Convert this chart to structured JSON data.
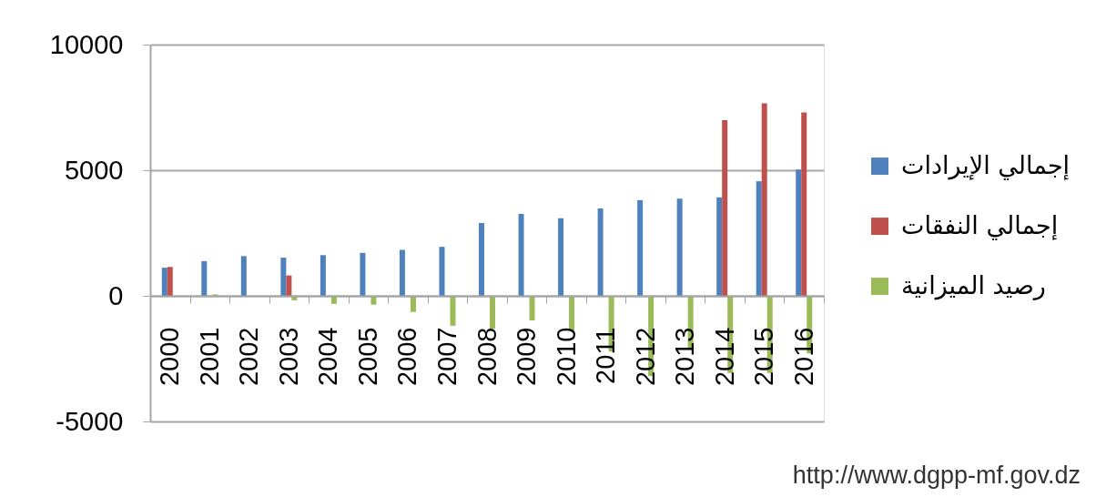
{
  "chart_data": {
    "type": "bar",
    "categories": [
      "2000",
      "2001",
      "2002",
      "2003",
      "2004",
      "2005",
      "2006",
      "2007",
      "2008",
      "2009",
      "2010",
      "2011",
      "2012",
      "2013",
      "2014",
      "2015",
      "2016"
    ],
    "series": [
      {
        "name": "إجمالي الإيرادات",
        "color": "#4f81bd",
        "values": [
          1120,
          1380,
          1580,
          1520,
          1620,
          1710,
          1830,
          1950,
          2900,
          3260,
          3090,
          3480,
          3810,
          3870,
          3920,
          4560,
          5030
        ]
      },
      {
        "name": "إجمالي النفقات",
        "color": "#c0504d",
        "values": [
          1150,
          null,
          null,
          810,
          null,
          null,
          null,
          null,
          null,
          null,
          null,
          null,
          null,
          null,
          6990,
          7660,
          7300
        ]
      },
      {
        "name": "رصيد الميزانية",
        "color": "#9bbb59",
        "values": [
          null,
          60,
          null,
          -180,
          -320,
          -350,
          -640,
          -1190,
          -1310,
          -980,
          -1390,
          -2220,
          -3190,
          -2100,
          -3070,
          -3070,
          -2290
        ]
      }
    ],
    "ylim": [
      -5000,
      10000
    ],
    "yticks": [
      -5000,
      0,
      5000,
      10000
    ],
    "grid": "y",
    "legend": "right",
    "annotations": [
      "http://www.dgpp-mf.gov.dz"
    ]
  }
}
